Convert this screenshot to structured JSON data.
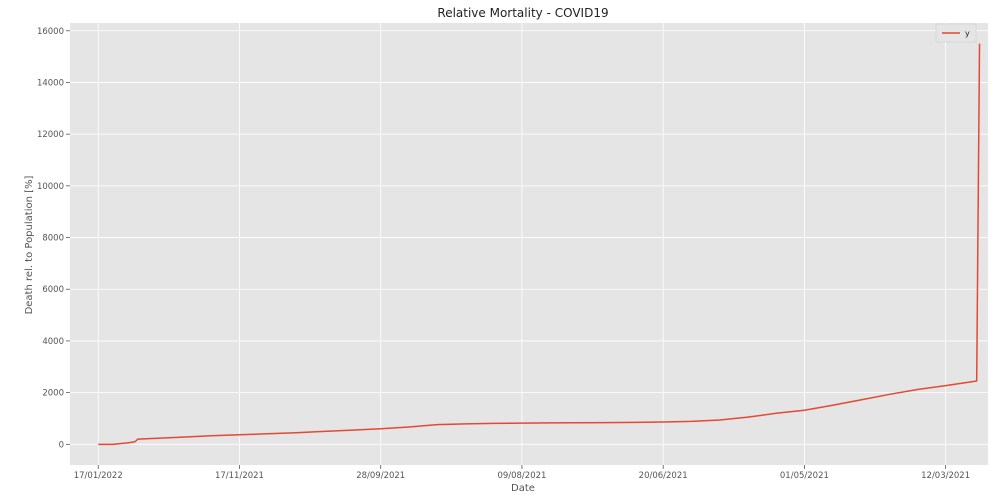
{
  "chart_data": {
    "type": "line",
    "title": "Relative Mortality - COVID19",
    "xlabel": "Date",
    "ylabel": "Death rel. to Population [%]",
    "grid": true,
    "legend_position": "top-right",
    "xlim": [
      -20,
      630
    ],
    "ylim": [
      -800,
      16300
    ],
    "x_ticks": [
      {
        "x": 0,
        "label": "17/01/2022"
      },
      {
        "x": 100,
        "label": "17/11/2021"
      },
      {
        "x": 200,
        "label": "28/09/2021"
      },
      {
        "x": 300,
        "label": "09/08/2021"
      },
      {
        "x": 400,
        "label": "20/06/2021"
      },
      {
        "x": 500,
        "label": "01/05/2021"
      },
      {
        "x": 600,
        "label": "12/03/2021"
      }
    ],
    "y_ticks": [
      0,
      2000,
      4000,
      6000,
      8000,
      10000,
      12000,
      14000,
      16000
    ],
    "series": [
      {
        "name": "y",
        "color": "#e24a33",
        "x": [
          0,
          10,
          20,
          26,
          28,
          40,
          60,
          80,
          100,
          120,
          140,
          160,
          180,
          200,
          220,
          240,
          260,
          280,
          300,
          320,
          340,
          360,
          380,
          400,
          420,
          440,
          460,
          480,
          500,
          520,
          540,
          560,
          580,
          600,
          622,
          624
        ],
        "y": [
          0,
          0,
          50,
          100,
          200,
          230,
          280,
          330,
          370,
          410,
          450,
          500,
          550,
          600,
          670,
          760,
          790,
          810,
          820,
          830,
          835,
          840,
          850,
          865,
          890,
          940,
          1050,
          1200,
          1320,
          1510,
          1720,
          1930,
          2120,
          2270,
          2450,
          15500
        ]
      }
    ]
  }
}
